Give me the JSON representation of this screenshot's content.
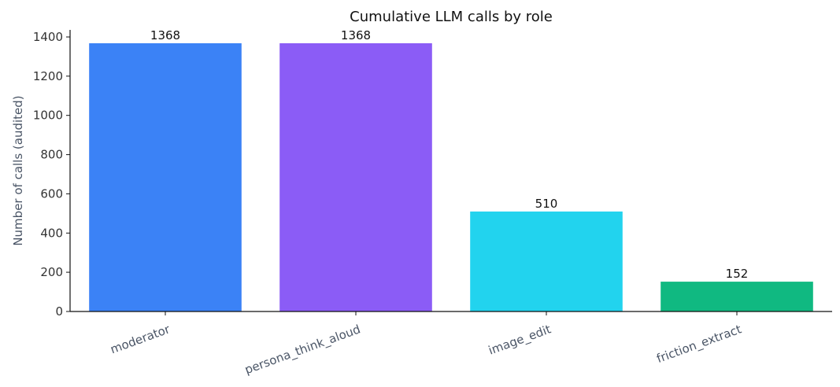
{
  "chart_data": {
    "type": "bar",
    "title": "Cumulative LLM calls by role",
    "ylabel": "Number of calls (audited)",
    "xlabel": "",
    "categories": [
      "moderator",
      "persona_think_aloud",
      "image_edit",
      "friction_extract"
    ],
    "values": [
      1368,
      1368,
      510,
      152
    ],
    "colors": [
      "#3b82f6",
      "#8b5cf6",
      "#22d3ee",
      "#10b981"
    ],
    "data_labels": [
      "1368",
      "1368",
      "510",
      "152"
    ],
    "ylim": [
      0,
      1436
    ],
    "yticks": [
      0,
      200,
      400,
      600,
      800,
      1000,
      1200,
      1400
    ],
    "grid": false,
    "legend": "none"
  }
}
